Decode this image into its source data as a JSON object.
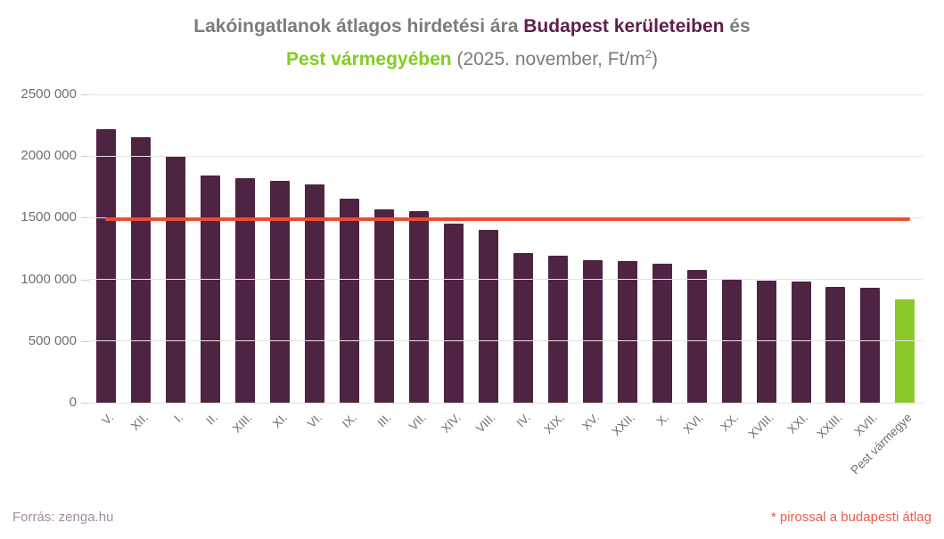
{
  "title": {
    "part1": "Lakóingatlanok átlagos hirdetési ára ",
    "part2": "Budapest kerületeiben",
    "part3": " és",
    "part4": "Pest vármegyében",
    "part5": " (2025. november, Ft/m",
    "part5_sup": "2",
    "part5_end": ")"
  },
  "footer": {
    "source": "Forrás: zenga.hu",
    "note": "* pirossal a budapesti átlag"
  },
  "colors": {
    "bar": "#4f2342",
    "highlight_bar": "#8bc92a",
    "average_line": "#ee4b33",
    "title_gray": "#7c7c7c",
    "title_budapest": "#5e1f49",
    "title_pest": "#80cd1f",
    "source_text": "#a78aa2",
    "note_text": "#e85c47"
  },
  "chart_data": {
    "type": "bar",
    "title": "Lakóingatlanok átlagos hirdetési ára Budapest kerületeiben és Pest vármegyében (2025. november, Ft/m2)",
    "xlabel": "",
    "ylabel": "",
    "ylim": [
      0,
      2500000
    ],
    "grid": true,
    "categories": [
      "V.",
      "XII.",
      "I.",
      "II.",
      "XIII.",
      "XI.",
      "VI.",
      "IX.",
      "III.",
      "VII.",
      "XIV.",
      "VIII.",
      "IV.",
      "XIX.",
      "XV.",
      "XXII.",
      "X.",
      "XVI.",
      "XX.",
      "XVIII.",
      "XXI.",
      "XXIII.",
      "XVII.",
      "Pest vármegye"
    ],
    "values": [
      2220000,
      2150000,
      2000000,
      1840000,
      1820000,
      1800000,
      1770000,
      1655000,
      1565000,
      1550000,
      1455000,
      1400000,
      1215000,
      1190000,
      1155000,
      1150000,
      1125000,
      1080000,
      1000000,
      990000,
      985000,
      940000,
      935000,
      835000
    ],
    "highlight_category": "Pest vármegye",
    "average_line": {
      "label": "budapesti átlag",
      "value": 1490000
    },
    "yticks": [
      {
        "value": 0,
        "label": "0"
      },
      {
        "value": 500000,
        "label": "500 000"
      },
      {
        "value": 1000000,
        "label": "1000 000"
      },
      {
        "value": 1500000,
        "label": "1500 000"
      },
      {
        "value": 2000000,
        "label": "2000 000"
      },
      {
        "value": 2500000,
        "label": "2500 000"
      }
    ]
  }
}
